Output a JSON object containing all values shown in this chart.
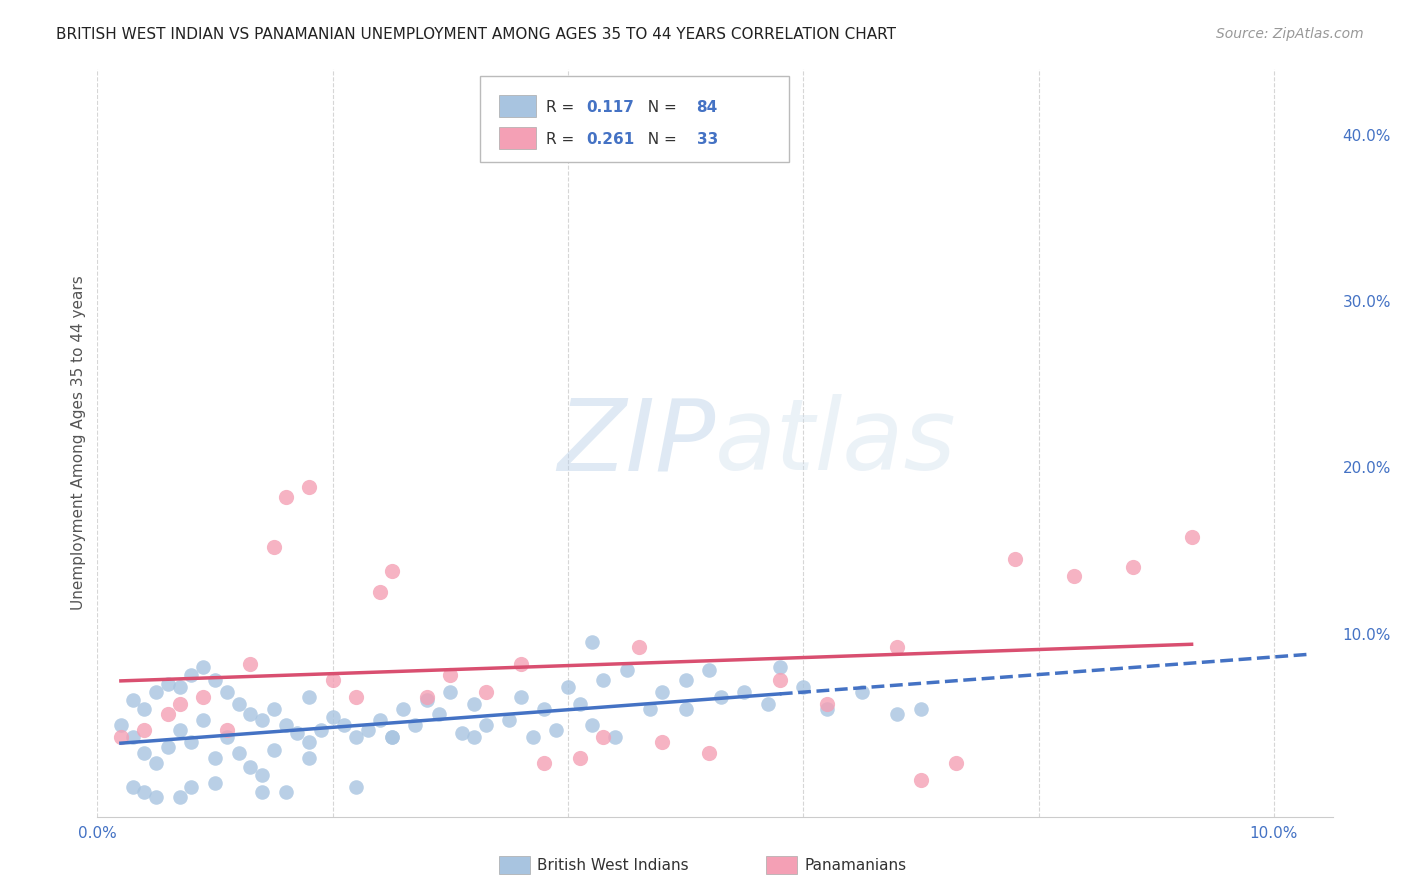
{
  "title": "BRITISH WEST INDIAN VS PANAMANIAN UNEMPLOYMENT AMONG AGES 35 TO 44 YEARS CORRELATION CHART",
  "source": "Source: ZipAtlas.com",
  "ylabel": "Unemployment Among Ages 35 to 44 years",
  "xlim": [
    0.0,
    0.105
  ],
  "ylim": [
    -0.01,
    0.44
  ],
  "x_ticks": [
    0.0,
    0.02,
    0.04,
    0.06,
    0.08,
    0.1
  ],
  "x_tick_labels": [
    "0.0%",
    "",
    "",
    "",
    "",
    "10.0%"
  ],
  "y_ticks_right": [
    0.0,
    0.1,
    0.2,
    0.3,
    0.4
  ],
  "y_tick_labels_right": [
    "",
    "10.0%",
    "20.0%",
    "30.0%",
    "40.0%"
  ],
  "bwi_R": 0.117,
  "bwi_N": 84,
  "pan_R": 0.261,
  "pan_N": 33,
  "bwi_color": "#a8c4e0",
  "pan_color": "#f4a0b5",
  "bwi_line_color": "#4472c4",
  "pan_line_color": "#d94f70",
  "legend_label_1": "British West Indians",
  "legend_label_2": "Panamanians",
  "watermark_zip": "ZIP",
  "watermark_atlas": "atlas",
  "bwi_x": [
    0.002,
    0.003,
    0.003,
    0.004,
    0.004,
    0.005,
    0.005,
    0.006,
    0.006,
    0.007,
    0.007,
    0.008,
    0.008,
    0.009,
    0.009,
    0.01,
    0.01,
    0.011,
    0.011,
    0.012,
    0.012,
    0.013,
    0.013,
    0.014,
    0.014,
    0.015,
    0.015,
    0.016,
    0.017,
    0.018,
    0.018,
    0.019,
    0.02,
    0.021,
    0.022,
    0.023,
    0.024,
    0.025,
    0.026,
    0.027,
    0.028,
    0.029,
    0.03,
    0.031,
    0.032,
    0.033,
    0.035,
    0.036,
    0.037,
    0.038,
    0.039,
    0.04,
    0.041,
    0.042,
    0.043,
    0.044,
    0.045,
    0.047,
    0.048,
    0.05,
    0.05,
    0.052,
    0.053,
    0.055,
    0.057,
    0.058,
    0.06,
    0.062,
    0.065,
    0.068,
    0.07,
    0.042,
    0.022,
    0.016,
    0.014,
    0.01,
    0.008,
    0.007,
    0.005,
    0.004,
    0.003,
    0.018,
    0.025,
    0.032
  ],
  "bwi_y": [
    0.045,
    0.06,
    0.038,
    0.055,
    0.028,
    0.065,
    0.022,
    0.07,
    0.032,
    0.068,
    0.042,
    0.075,
    0.035,
    0.08,
    0.048,
    0.072,
    0.025,
    0.065,
    0.038,
    0.058,
    0.028,
    0.052,
    0.02,
    0.048,
    0.015,
    0.055,
    0.03,
    0.045,
    0.04,
    0.062,
    0.035,
    0.042,
    0.05,
    0.045,
    0.038,
    0.042,
    0.048,
    0.038,
    0.055,
    0.045,
    0.06,
    0.052,
    0.065,
    0.04,
    0.058,
    0.045,
    0.048,
    0.062,
    0.038,
    0.055,
    0.042,
    0.068,
    0.058,
    0.045,
    0.072,
    0.038,
    0.078,
    0.055,
    0.065,
    0.072,
    0.055,
    0.078,
    0.062,
    0.065,
    0.058,
    0.08,
    0.068,
    0.055,
    0.065,
    0.052,
    0.055,
    0.095,
    0.008,
    0.005,
    0.005,
    0.01,
    0.008,
    0.002,
    0.002,
    0.005,
    0.008,
    0.025,
    0.038,
    0.038
  ],
  "pan_x": [
    0.002,
    0.004,
    0.006,
    0.007,
    0.009,
    0.011,
    0.013,
    0.015,
    0.016,
    0.018,
    0.02,
    0.022,
    0.024,
    0.025,
    0.028,
    0.03,
    0.033,
    0.036,
    0.038,
    0.041,
    0.043,
    0.046,
    0.048,
    0.052,
    0.058,
    0.062,
    0.068,
    0.07,
    0.073,
    0.078,
    0.083,
    0.088,
    0.093
  ],
  "pan_y": [
    0.038,
    0.042,
    0.052,
    0.058,
    0.062,
    0.042,
    0.082,
    0.152,
    0.182,
    0.188,
    0.072,
    0.062,
    0.125,
    0.138,
    0.062,
    0.075,
    0.065,
    0.082,
    0.022,
    0.025,
    0.038,
    0.092,
    0.035,
    0.028,
    0.072,
    0.058,
    0.092,
    0.012,
    0.022,
    0.145,
    0.135,
    0.14,
    0.158
  ],
  "background_color": "#ffffff",
  "grid_color": "#cccccc",
  "title_color": "#222222",
  "axis_label_color": "#4472c4",
  "ylabel_color": "#555555"
}
